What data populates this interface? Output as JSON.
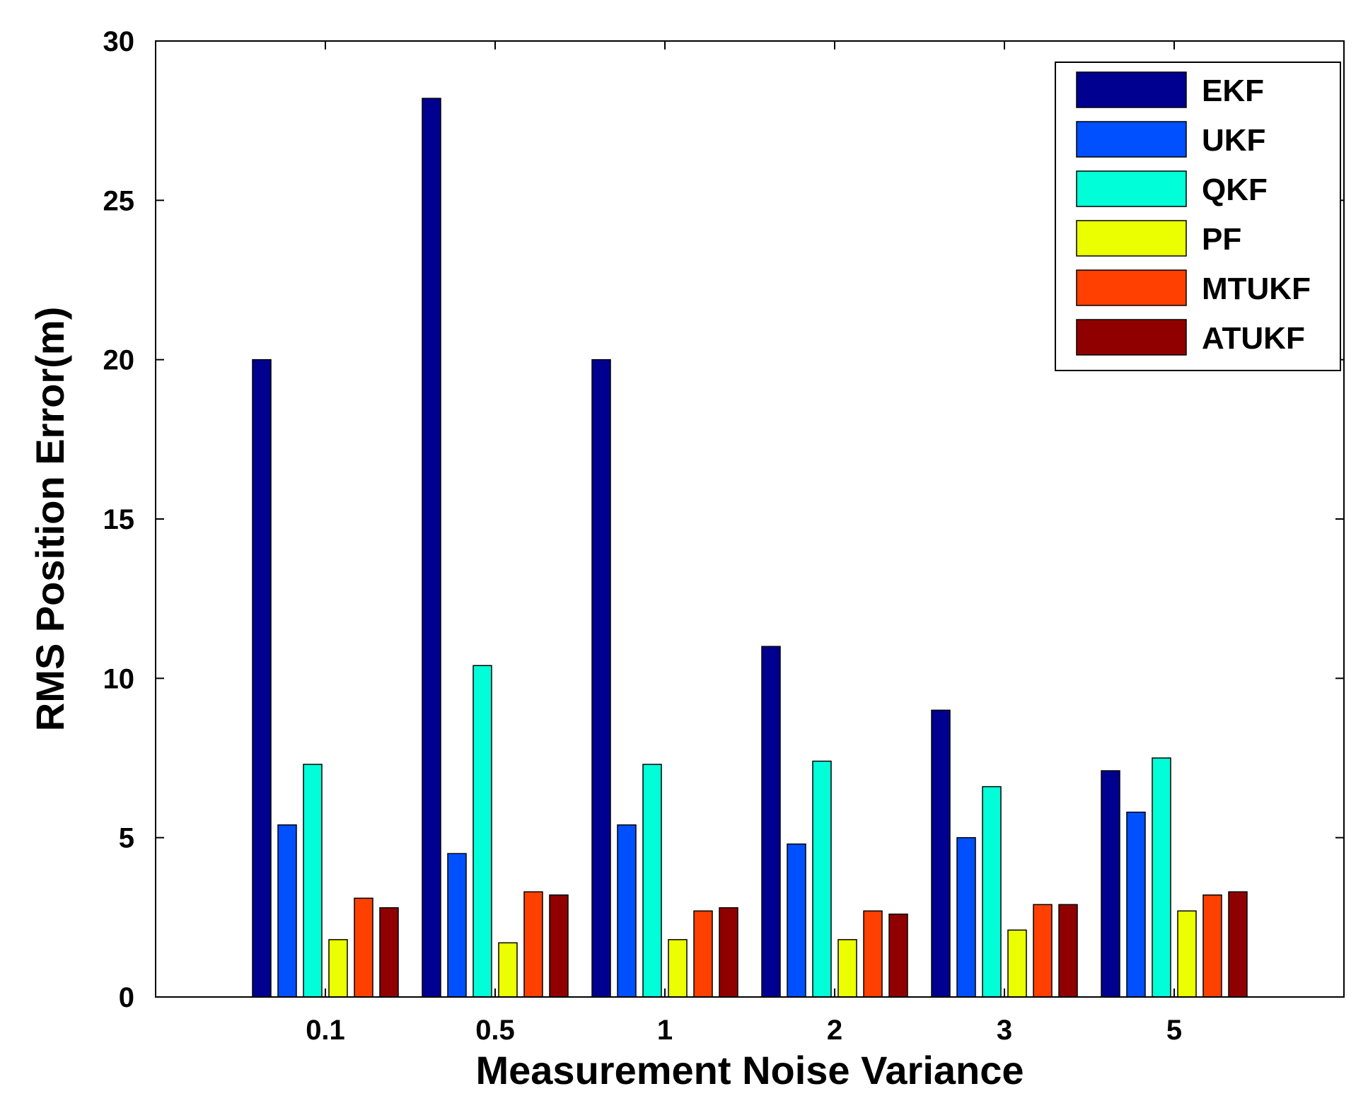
{
  "chart_data": {
    "type": "bar",
    "title": "",
    "xlabel": "Measurement Noise Variance",
    "ylabel": "RMS Position Error(m)",
    "categories": [
      "0.1",
      "0.5",
      "1",
      "2",
      "3",
      "5"
    ],
    "ylim": [
      0,
      30
    ],
    "yticks": [
      "0",
      "5",
      "10",
      "15",
      "20",
      "25",
      "30"
    ],
    "grid": false,
    "legend_position": "top-right",
    "series": [
      {
        "name": "EKF",
        "color": "#000090",
        "values": [
          20.0,
          28.2,
          20.0,
          11.0,
          9.0,
          7.1
        ]
      },
      {
        "name": "UKF",
        "color": "#0050ff",
        "values": [
          5.4,
          4.5,
          5.4,
          4.8,
          5.0,
          5.8
        ]
      },
      {
        "name": "QKF",
        "color": "#00ffd8",
        "values": [
          7.3,
          10.4,
          7.3,
          7.4,
          6.6,
          7.5
        ]
      },
      {
        "name": "PF",
        "color": "#ecff00",
        "values": [
          1.8,
          1.7,
          1.8,
          1.8,
          2.1,
          2.7
        ]
      },
      {
        "name": "MTUKF",
        "color": "#ff4000",
        "values": [
          3.1,
          3.3,
          2.7,
          2.7,
          2.9,
          3.2
        ]
      },
      {
        "name": "ATUKF",
        "color": "#900000",
        "values": [
          2.8,
          3.2,
          2.8,
          2.6,
          2.9,
          3.3
        ]
      }
    ]
  }
}
